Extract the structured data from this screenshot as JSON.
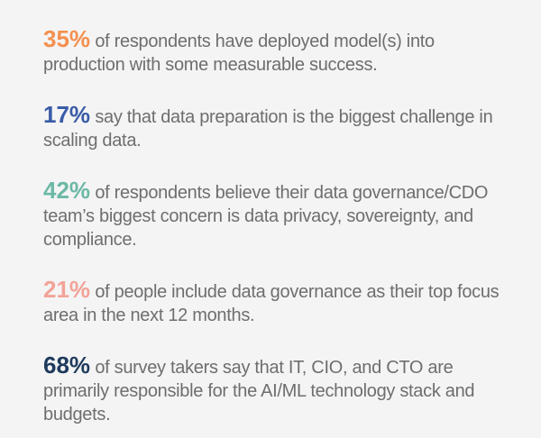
{
  "items": [
    {
      "stat": "35%",
      "text": "of respondents have deployed model(s) into production with some measurable success.",
      "color": "#f4904f"
    },
    {
      "stat": "17%",
      "text": "say that data preparation is the biggest challenge in scaling data.",
      "color": "#3a5ba8"
    },
    {
      "stat": "42%",
      "text": "of respondents believe their data governance/CDO team’s biggest concern is data privacy, sovereignty, and compliance.",
      "color": "#6cb8a6"
    },
    {
      "stat": "21%",
      "text": "of people include data governance as their top focus area in the next 12 months.",
      "color": "#f3a398"
    },
    {
      "stat": "68%",
      "text": "of survey takers say that IT, CIO, and CTO are primarily responsible for the AI/ML technology stack and budgets.",
      "color": "#1e3a5c"
    }
  ]
}
